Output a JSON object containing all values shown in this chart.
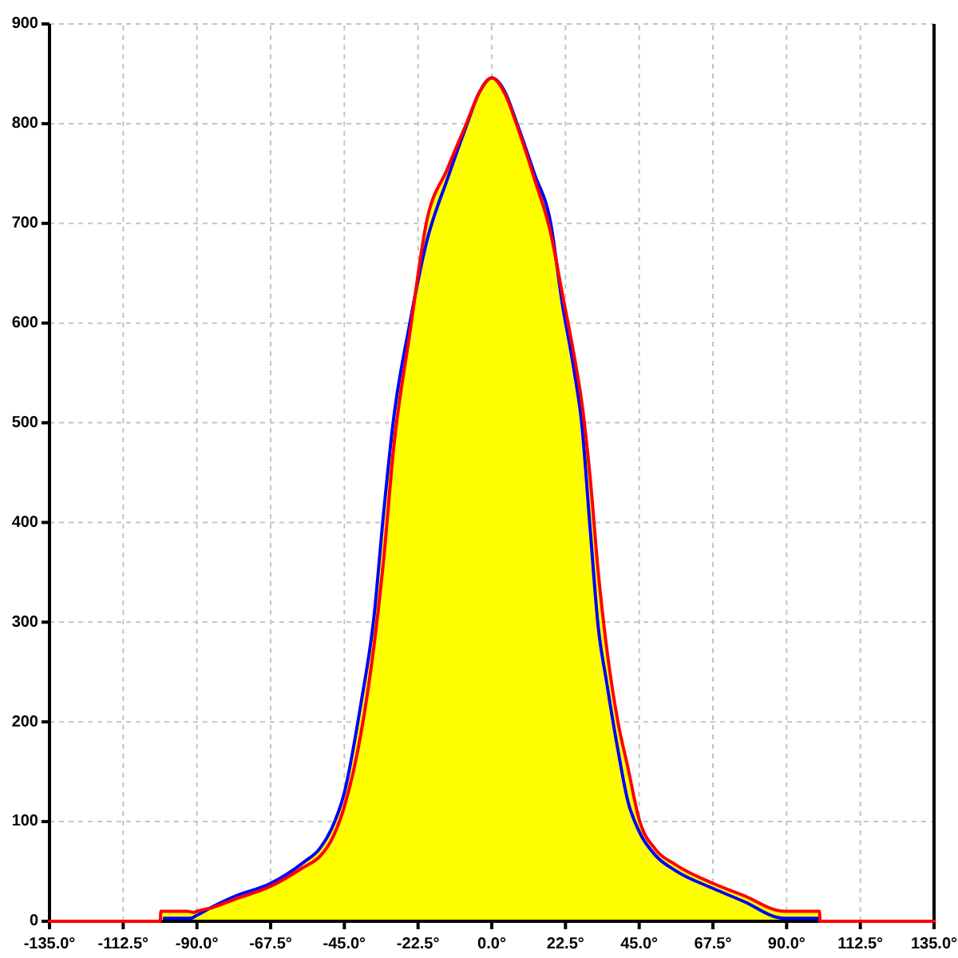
{
  "chart_data": {
    "type": "line",
    "xlim": [
      -135,
      135
    ],
    "ylim": [
      0,
      900
    ],
    "xticks": [
      {
        "value": -135,
        "label": "-135.0°"
      },
      {
        "value": -112.5,
        "label": "-112.5°"
      },
      {
        "value": -90,
        "label": "-90.0°"
      },
      {
        "value": -67.5,
        "label": "-67.5°"
      },
      {
        "value": -45,
        "label": "-45.0°"
      },
      {
        "value": -22.5,
        "label": "-22.5°"
      },
      {
        "value": 0,
        "label": "0.0°"
      },
      {
        "value": 22.5,
        "label": "22.5°"
      },
      {
        "value": 45,
        "label": "45.0°"
      },
      {
        "value": 67.5,
        "label": "67.5°"
      },
      {
        "value": 90,
        "label": "90.0°"
      },
      {
        "value": 112.5,
        "label": "112.5°"
      },
      {
        "value": 135,
        "label": "135.0°"
      }
    ],
    "yticks": [
      0,
      100,
      200,
      300,
      400,
      500,
      600,
      700,
      800,
      900
    ],
    "grid": true,
    "series": [
      {
        "type": "area",
        "color": "#ffff00",
        "x": [
          -101.2,
          -101,
          -93,
          -91,
          -90,
          -85,
          -78.5,
          -67.5,
          -57.5,
          -52.5,
          -49,
          -45,
          -40,
          -36,
          -33,
          -30,
          -25,
          -20,
          -13.5,
          -7.5,
          -4,
          0,
          4,
          7.5,
          13,
          18,
          21.5,
          25,
          27.5,
          30,
          32.5,
          35,
          38.5,
          41.5,
          45,
          50,
          56,
          67.5,
          77.5,
          87,
          89.5,
          100,
          100.2
        ],
        "values": [
          0,
          10,
          10,
          9,
          10,
          15,
          25,
          38,
          59,
          73,
          92,
          129,
          217,
          304,
          410,
          503,
          600,
          700,
          755,
          802,
          830,
          846,
          832,
          802,
          750,
          700,
          630,
          570,
          520,
          446,
          350,
          276,
          200,
          155,
          102,
          72,
          57,
          38,
          25,
          11,
          10,
          10,
          0
        ]
      },
      {
        "color": "#0000ff",
        "x": [
          -100,
          -92,
          -90,
          -85,
          -78.5,
          -67.5,
          -57.5,
          -52.5,
          -49,
          -45,
          -40,
          -36,
          -33,
          -30,
          -25,
          -20,
          -13.5,
          -7.5,
          -4,
          0,
          4,
          7.5,
          13,
          18,
          21.5,
          25,
          27.5,
          30,
          32.5,
          35,
          38.5,
          41.5,
          45,
          50,
          56,
          67.5,
          77.5,
          87,
          89.5,
          100
        ],
        "values": [
          3,
          3,
          6,
          15,
          25,
          38,
          59,
          73,
          92,
          129,
          217,
          304,
          410,
          503,
          600,
          680,
          745,
          800,
          830,
          846,
          832,
          802,
          750,
          700,
          620,
          555,
          498,
          395,
          295,
          241,
          172,
          121,
          90,
          66,
          51,
          33,
          19,
          4,
          3,
          3
        ]
      },
      {
        "color": "#ff0000",
        "x": [
          -135,
          -101.2,
          -101,
          -93,
          -91,
          -90,
          -85,
          -78.5,
          -67.5,
          -57.5,
          -52.5,
          -49,
          -45,
          -40,
          -36,
          -33,
          -30,
          -25,
          -20,
          -13.5,
          -7.5,
          -4,
          0,
          4,
          7.5,
          13,
          18,
          21.5,
          25,
          27.5,
          30,
          32.5,
          35,
          38.5,
          41.5,
          45,
          50,
          56,
          67.5,
          77.5,
          87,
          89.5,
          100,
          100.2,
          135
        ],
        "values": [
          0,
          0,
          10,
          10,
          9,
          10,
          14,
          22,
          35,
          54,
          65,
          81,
          115,
          187,
          275,
          363,
          473,
          590,
          700,
          755,
          802,
          830,
          846,
          830,
          800,
          745,
          690,
          630,
          570,
          520,
          446,
          350,
          276,
          200,
          155,
          102,
          72,
          57,
          38,
          25,
          11,
          10,
          10,
          0,
          0
        ]
      }
    ]
  }
}
